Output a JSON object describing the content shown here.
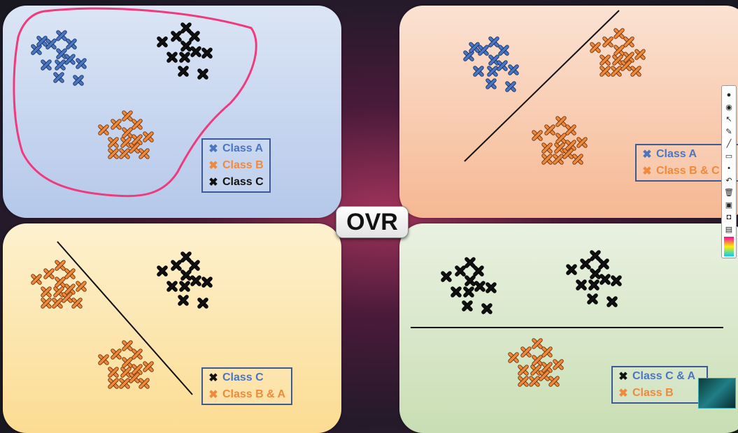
{
  "title": "OVR",
  "colors": {
    "class_a": "#4a76c2",
    "class_b": "#ef8a3c",
    "class_c": "#111111",
    "highlight": "#ef3a7d",
    "legend_border": "#3c5a97"
  },
  "marker_symbol": "✖",
  "panels": {
    "top_left": {
      "legend": [
        {
          "label": "Class A",
          "class": "a"
        },
        {
          "label": "Class B",
          "class": "b"
        },
        {
          "label": "Class C",
          "class": "c"
        }
      ],
      "divider": "freehand-loop"
    },
    "top_right": {
      "legend": [
        {
          "label": "Class A",
          "class": "a"
        },
        {
          "label": "Class B & C",
          "class": "b"
        }
      ],
      "divider": "diagonal-line"
    },
    "bottom_left": {
      "legend": [
        {
          "label": "Class C",
          "class": "c"
        },
        {
          "label": "Class B & A",
          "class": "b"
        }
      ],
      "divider": "diagonal-line"
    },
    "bottom_right": {
      "legend": [
        {
          "label": "Class C & A",
          "class": "c"
        },
        {
          "label": "Class B",
          "class": "b"
        }
      ],
      "divider": "horizontal-line"
    }
  },
  "toolbar": {
    "tools": [
      "bulb-icon",
      "eye-icon",
      "cursor-icon",
      "pen-icon",
      "line-icon",
      "eraser-icon",
      "dot-icon",
      "undo-icon",
      "trash-icon",
      "screen-icon",
      "camera-icon",
      "clipboard-icon",
      "palette-icon"
    ]
  }
}
